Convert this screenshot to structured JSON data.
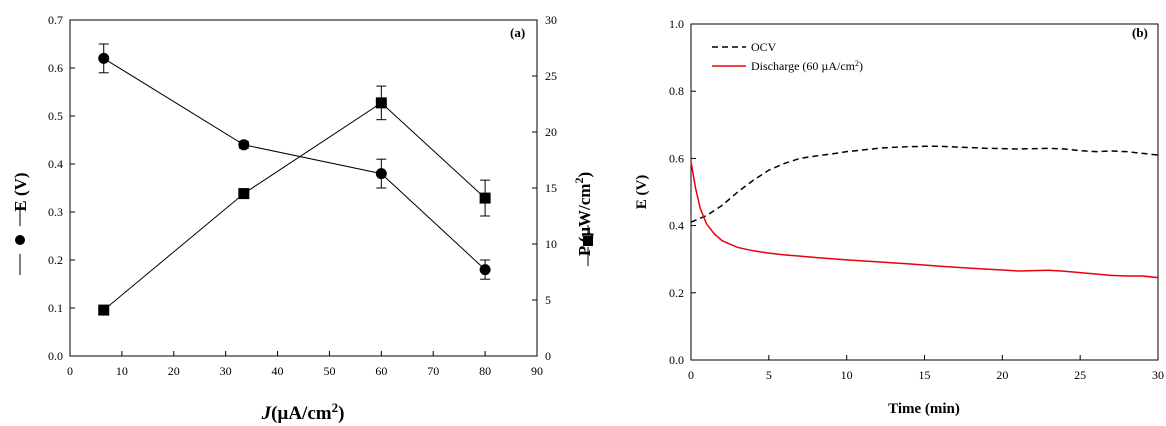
{
  "chart_data": [
    {
      "type": "line",
      "panel_label": "(a)",
      "xlabel_italic": "J",
      "xlabel_unit": "(µA/cm",
      "xlabel_sup": "2",
      "xlabel_close": ")",
      "ylabel_left": "E (V)",
      "ylabel_right_main": "P (µW/cm",
      "ylabel_right_sup": "2",
      "ylabel_right_close": ")",
      "xlim": [
        0,
        90
      ],
      "ylim_left": [
        0,
        0.7
      ],
      "ylim_right": [
        0,
        30
      ],
      "xticks": [
        "0",
        "10",
        "20",
        "30",
        "40",
        "50",
        "60",
        "70",
        "80",
        "90"
      ],
      "yticks_left": [
        "0.0",
        "0.1",
        "0.2",
        "0.3",
        "0.4",
        "0.5",
        "0.6",
        "0.7"
      ],
      "yticks_right": [
        "0",
        "5",
        "10",
        "15",
        "20",
        "25",
        "30"
      ],
      "grid": false,
      "series": [
        {
          "marker": "circle",
          "axis": "left",
          "x": [
            6.5,
            33.5,
            60,
            80
          ],
          "y": [
            0.62,
            0.44,
            0.38,
            0.18
          ],
          "err": [
            0.03,
            0.007,
            0.03,
            0.02
          ]
        },
        {
          "marker": "square",
          "axis": "right",
          "x": [
            6.5,
            33.5,
            60,
            80
          ],
          "y": [
            4.1,
            14.5,
            22.6,
            14.1
          ],
          "err": [
            0,
            0,
            1.5,
            1.6
          ]
        }
      ]
    },
    {
      "type": "line",
      "panel_label": "(b)",
      "xlabel": "Time (min)",
      "ylabel": "E (V)",
      "xlim": [
        0,
        30
      ],
      "ylim": [
        0,
        1
      ],
      "xticks": [
        "0",
        "5",
        "10",
        "15",
        "20",
        "25",
        "30"
      ],
      "yticks": [
        "0.0",
        "0.2",
        "0.4",
        "0.6",
        "0.8",
        "1.0"
      ],
      "grid": false,
      "legend_position": "top-left",
      "series": [
        {
          "name": "OCV",
          "color": "#000000",
          "style": "dashed",
          "x": [
            0,
            1,
            2,
            3,
            4,
            5,
            6,
            7,
            8,
            9,
            10,
            11,
            12,
            13,
            14,
            15,
            16,
            17,
            18,
            19,
            20,
            21,
            22,
            23,
            24,
            25,
            26,
            27,
            28,
            29,
            30
          ],
          "y": [
            0.41,
            0.43,
            0.46,
            0.5,
            0.535,
            0.565,
            0.585,
            0.6,
            0.607,
            0.613,
            0.62,
            0.625,
            0.63,
            0.633,
            0.635,
            0.636,
            0.636,
            0.634,
            0.632,
            0.63,
            0.629,
            0.628,
            0.629,
            0.63,
            0.628,
            0.623,
            0.62,
            0.622,
            0.62,
            0.615,
            0.61
          ]
        },
        {
          "name_main": "Discharge (60 µA/cm",
          "name_sup": "2",
          "name_close": ")",
          "color": "#e8000b",
          "style": "solid",
          "x": [
            0,
            0.3,
            0.6,
            1,
            1.5,
            2,
            3,
            4,
            5,
            6,
            7,
            8,
            10,
            12,
            14,
            16,
            18,
            20,
            21,
            22,
            23,
            24,
            25,
            26,
            27,
            28,
            29,
            30
          ],
          "y": [
            0.59,
            0.51,
            0.45,
            0.405,
            0.375,
            0.355,
            0.335,
            0.325,
            0.318,
            0.313,
            0.309,
            0.305,
            0.298,
            0.292,
            0.286,
            0.279,
            0.273,
            0.268,
            0.265,
            0.266,
            0.267,
            0.264,
            0.26,
            0.256,
            0.252,
            0.25,
            0.25,
            0.245
          ]
        }
      ]
    }
  ]
}
